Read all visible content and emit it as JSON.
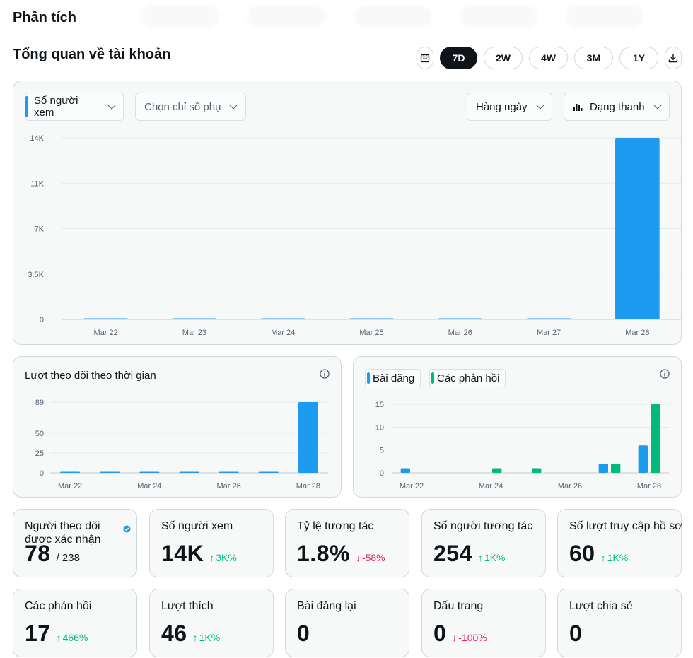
{
  "page": {
    "title": "Phân tích",
    "section_title": "Tổng quan về tài khoản"
  },
  "range": {
    "options": [
      "7D",
      "2W",
      "4W",
      "3M",
      "1Y"
    ],
    "selected": "7D"
  },
  "main_chart": {
    "primary_metric": "Số người xem",
    "secondary_metric": "Chọn chỉ số phụ",
    "interval": "Hàng ngày",
    "chart_type": "Dạng thanh"
  },
  "follow_panel": {
    "title": "Lượt theo dõi theo thời gian"
  },
  "posts_panel": {
    "legend_posts": "Bài đăng",
    "legend_replies": "Các phản hồi"
  },
  "chart_data": [
    {
      "type": "bar",
      "categories": [
        "Mar 22",
        "Mar 23",
        "Mar 24",
        "Mar 25",
        "Mar 26",
        "Mar 27",
        "Mar 28"
      ],
      "values": [
        0,
        0,
        0,
        0,
        0,
        0,
        14000
      ],
      "yticks": [
        "0",
        "3.5K",
        "7K",
        "11K",
        "14K"
      ],
      "ytick_values": [
        0,
        3500,
        7000,
        10500,
        14000
      ],
      "ylim": [
        0,
        14000
      ],
      "grid": true,
      "color": "#1d9bf0"
    },
    {
      "type": "bar",
      "categories": [
        "Mar 22",
        "Mar 23",
        "Mar 24",
        "Mar 25",
        "Mar 26",
        "Mar 27",
        "Mar 28"
      ],
      "xtick_labels": [
        "Mar 22",
        "Mar 24",
        "Mar 26",
        "Mar 28"
      ],
      "values": [
        0,
        0,
        0,
        0,
        0,
        1,
        89
      ],
      "yticks": [
        "0",
        "25",
        "50",
        "89"
      ],
      "ytick_values": [
        0,
        25,
        50,
        89
      ],
      "ylim": [
        0,
        89
      ],
      "grid": true,
      "color": "#1d9bf0"
    },
    {
      "type": "bar",
      "categories": [
        "Mar 22",
        "Mar 23",
        "Mar 24",
        "Mar 25",
        "Mar 26",
        "Mar 27",
        "Mar 28"
      ],
      "xtick_labels": [
        "Mar 22",
        "Mar 24",
        "Mar 26",
        "Mar 28"
      ],
      "series": [
        {
          "name": "Bài đăng",
          "values": [
            1,
            0,
            0,
            0,
            0,
            2,
            6
          ],
          "color": "#1d9bf0"
        },
        {
          "name": "Các phản hồi",
          "values": [
            0,
            0,
            1,
            1,
            0,
            2,
            15
          ],
          "color": "#00ba7c"
        }
      ],
      "yticks": [
        "0",
        "5",
        "10",
        "15"
      ],
      "ytick_values": [
        0,
        5,
        10,
        15
      ],
      "ylim": [
        0,
        15
      ],
      "grid": true
    }
  ],
  "stats": [
    {
      "label": "Người theo dõi được xác nhận",
      "value": "78",
      "sub": "/ 238",
      "delta": "",
      "dir": "",
      "verified": true
    },
    {
      "label": "Số người xem",
      "value": "14K",
      "sub": "",
      "delta": "3K%",
      "dir": "up"
    },
    {
      "label": "Tỷ lệ tương tác",
      "value": "1.8%",
      "sub": "",
      "delta": "-58%",
      "dir": "down"
    },
    {
      "label": "Số người tương tác",
      "value": "254",
      "sub": "",
      "delta": "1K%",
      "dir": "up"
    },
    {
      "label": "Số lượt truy cập hồ sơ",
      "value": "60",
      "sub": "",
      "delta": "1K%",
      "dir": "up"
    },
    {
      "label": "Các phản hồi",
      "value": "17",
      "sub": "",
      "delta": "466%",
      "dir": "up"
    },
    {
      "label": "Lượt thích",
      "value": "46",
      "sub": "",
      "delta": "1K%",
      "dir": "up"
    },
    {
      "label": "Bài đăng lại",
      "value": "0",
      "sub": "",
      "delta": "",
      "dir": ""
    },
    {
      "label": "Dấu trang",
      "value": "0",
      "sub": "",
      "delta": "-100%",
      "dir": "down"
    },
    {
      "label": "Lượt chia sẻ",
      "value": "0",
      "sub": "",
      "delta": "",
      "dir": ""
    }
  ]
}
